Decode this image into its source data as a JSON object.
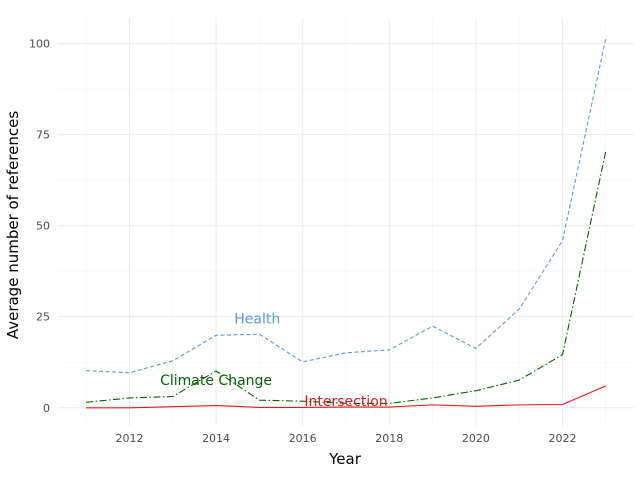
{
  "chart_data": {
    "type": "line",
    "title": "",
    "xlabel": "Year",
    "ylabel": "Average number of references",
    "x": [
      2011,
      2012,
      2013,
      2014,
      2015,
      2016,
      2017,
      2018,
      2019,
      2020,
      2021,
      2022,
      2023
    ],
    "xlim": [
      2010.35,
      2023.65
    ],
    "ylim": [
      -5,
      107
    ],
    "x_ticks": [
      "2012",
      "2014",
      "2016",
      "2018",
      "2020",
      "2022"
    ],
    "y_ticks": [
      "0",
      "25",
      "50",
      "75",
      "100"
    ],
    "grid": true,
    "legend": "none",
    "series": [
      {
        "name": "Health",
        "color": "#5b9ae6",
        "dash": "dashed",
        "values": [
          10.2,
          9.6,
          12.9,
          19.9,
          20.2,
          12.6,
          15.1,
          15.9,
          22.4,
          16.3,
          27.1,
          45.9,
          101.5
        ],
        "label_pos": [
          2014.95,
          24.5
        ]
      },
      {
        "name": "Climate Change",
        "color": "#006400",
        "dash": "dashdot",
        "values": [
          1.5,
          2.7,
          3.1,
          10.1,
          2.1,
          1.8,
          1.2,
          1.2,
          2.7,
          4.7,
          7.6,
          14.6,
          70.5
        ],
        "label_pos": [
          2014.0,
          7.6
        ]
      },
      {
        "name": "Intersection",
        "color": "#e31a1c",
        "dash": "solid",
        "values": [
          0.0,
          0.0,
          0.3,
          0.6,
          0.1,
          0.1,
          0.2,
          0.2,
          0.8,
          0.4,
          0.8,
          0.9,
          6.0
        ],
        "label_pos": [
          2017.0,
          1.9
        ]
      }
    ]
  }
}
